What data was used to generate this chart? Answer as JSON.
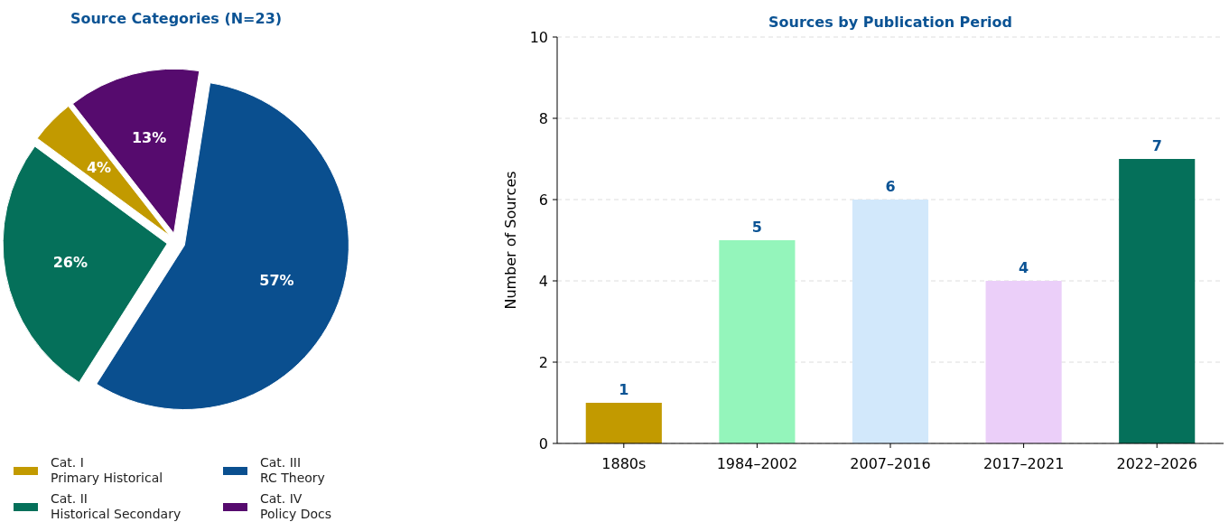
{
  "chart_data": [
    {
      "type": "pie",
      "title": "Source Categories (N=23)",
      "categories": [
        "Cat. I\nPrimary Historical",
        "Cat. II\nHistorical Secondary",
        "Cat. III\nRC Theory",
        "Cat. IV\nPolicy Docs"
      ],
      "values": [
        4.35,
        26.09,
        56.52,
        13.04
      ],
      "value_labels": [
        "4%",
        "26%",
        "57%",
        "13%"
      ],
      "colors": [
        "#c29a00",
        "#05705a",
        "#0a4f8f",
        "#560b6e"
      ],
      "legend": "bottom"
    },
    {
      "type": "bar",
      "title": "Sources by Publication Period",
      "ylabel": "Number of Sources",
      "categories": [
        "1880s",
        "1984–2002",
        "2007–2016",
        "2017–2021",
        "2022–2026"
      ],
      "values": [
        1,
        5,
        6,
        4,
        7
      ],
      "colors": [
        "#c29a00",
        "#94f5bb",
        "#d2e8fb",
        "#ebcff9",
        "#05705a"
      ],
      "ylim": [
        0,
        10
      ],
      "yticks": [
        0,
        2,
        4,
        6,
        8,
        10
      ],
      "grid": "y",
      "data_labels": true
    }
  ]
}
